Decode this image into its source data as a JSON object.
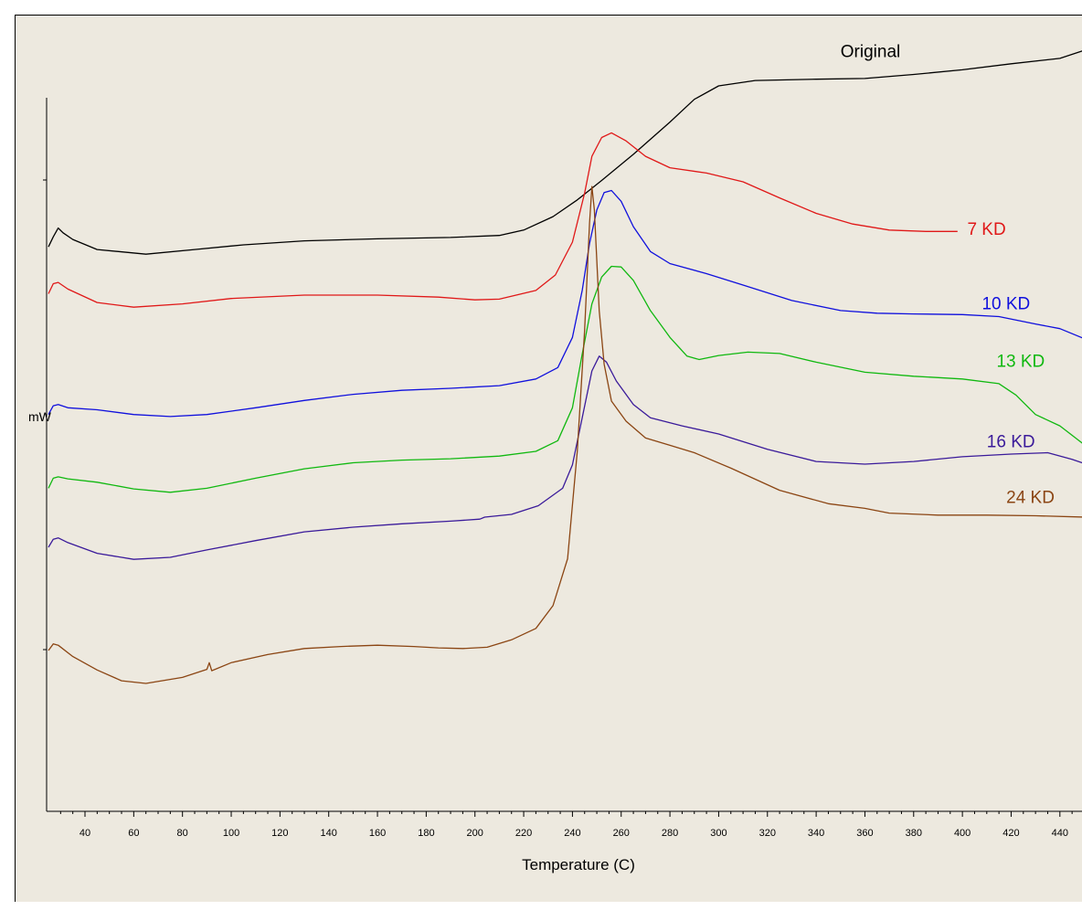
{
  "chart_data": {
    "type": "line",
    "title": "",
    "xlabel": "Temperature (C)",
    "ylabel": "mW",
    "xlim": [
      25,
      450
    ],
    "ylim": [
      0,
      100
    ],
    "x_ticks": [
      40,
      60,
      80,
      100,
      120,
      140,
      160,
      180,
      200,
      220,
      240,
      260,
      280,
      300,
      320,
      340,
      360,
      380,
      400,
      420,
      440
    ],
    "grid": false,
    "legend": "inline labels",
    "series": [
      {
        "name": "Original",
        "color": "#000000",
        "points": [
          [
            25,
            74.5
          ],
          [
            27,
            76.0
          ],
          [
            29,
            77.3
          ],
          [
            31,
            76.6
          ],
          [
            35,
            75.6
          ],
          [
            45,
            74.1
          ],
          [
            65,
            73.4
          ],
          [
            85,
            74.1
          ],
          [
            105,
            74.8
          ],
          [
            130,
            75.4
          ],
          [
            160,
            75.7
          ],
          [
            190,
            75.9
          ],
          [
            210,
            76.2
          ],
          [
            220,
            77.0
          ],
          [
            232,
            79.0
          ],
          [
            242,
            81.5
          ],
          [
            252,
            84.4
          ],
          [
            265,
            88.3
          ],
          [
            280,
            93.1
          ],
          [
            290,
            96.5
          ],
          [
            300,
            98.5
          ],
          [
            315,
            99.3
          ],
          [
            340,
            99.5
          ],
          [
            360,
            99.6
          ],
          [
            380,
            100.2
          ],
          [
            400,
            100.9
          ],
          [
            420,
            101.8
          ],
          [
            440,
            102.6
          ],
          [
            450,
            103.8
          ]
        ]
      },
      {
        "name": "7 KD",
        "color": "#e01818",
        "points": [
          [
            25,
            67.5
          ],
          [
            27,
            69.0
          ],
          [
            29,
            69.2
          ],
          [
            33,
            68.2
          ],
          [
            45,
            66.2
          ],
          [
            60,
            65.5
          ],
          [
            80,
            66.0
          ],
          [
            100,
            66.8
          ],
          [
            130,
            67.3
          ],
          [
            160,
            67.3
          ],
          [
            185,
            67.0
          ],
          [
            200,
            66.6
          ],
          [
            210,
            66.7
          ],
          [
            225,
            68.0
          ],
          [
            233,
            70.3
          ],
          [
            240,
            75.2
          ],
          [
            245,
            82.5
          ],
          [
            248,
            88.0
          ],
          [
            252,
            90.8
          ],
          [
            256,
            91.5
          ],
          [
            262,
            90.3
          ],
          [
            270,
            88.0
          ],
          [
            280,
            86.3
          ],
          [
            295,
            85.5
          ],
          [
            310,
            84.2
          ],
          [
            325,
            81.8
          ],
          [
            340,
            79.5
          ],
          [
            355,
            77.9
          ],
          [
            370,
            77.0
          ],
          [
            385,
            76.8
          ],
          [
            398,
            76.8
          ]
        ]
      },
      {
        "name": "10 KD",
        "color": "#1010dd",
        "points": [
          [
            25,
            49.5
          ],
          [
            27,
            50.8
          ],
          [
            29,
            51.0
          ],
          [
            33,
            50.5
          ],
          [
            45,
            50.2
          ],
          [
            60,
            49.5
          ],
          [
            75,
            49.2
          ],
          [
            90,
            49.5
          ],
          [
            110,
            50.5
          ],
          [
            130,
            51.6
          ],
          [
            150,
            52.5
          ],
          [
            170,
            53.1
          ],
          [
            190,
            53.4
          ],
          [
            210,
            53.8
          ],
          [
            225,
            54.8
          ],
          [
            234,
            56.5
          ],
          [
            240,
            61.0
          ],
          [
            244,
            68.0
          ],
          [
            247,
            75.0
          ],
          [
            250,
            80.0
          ],
          [
            253,
            82.6
          ],
          [
            256,
            82.9
          ],
          [
            260,
            81.3
          ],
          [
            265,
            77.5
          ],
          [
            272,
            73.8
          ],
          [
            280,
            72.0
          ],
          [
            295,
            70.5
          ],
          [
            310,
            68.8
          ],
          [
            330,
            66.5
          ],
          [
            350,
            65.0
          ],
          [
            365,
            64.6
          ],
          [
            380,
            64.5
          ],
          [
            400,
            64.4
          ],
          [
            415,
            64.1
          ],
          [
            430,
            63.0
          ],
          [
            440,
            62.3
          ],
          [
            450,
            60.8
          ]
        ]
      },
      {
        "name": "13 KD",
        "color": "#10b810",
        "points": [
          [
            25,
            38.5
          ],
          [
            27,
            40.0
          ],
          [
            29,
            40.2
          ],
          [
            33,
            39.9
          ],
          [
            45,
            39.4
          ],
          [
            60,
            38.4
          ],
          [
            75,
            37.9
          ],
          [
            90,
            38.5
          ],
          [
            110,
            40.0
          ],
          [
            130,
            41.4
          ],
          [
            150,
            42.3
          ],
          [
            170,
            42.7
          ],
          [
            190,
            42.9
          ],
          [
            210,
            43.3
          ],
          [
            225,
            44.0
          ],
          [
            234,
            45.6
          ],
          [
            240,
            50.5
          ],
          [
            244,
            58.5
          ],
          [
            248,
            66.0
          ],
          [
            252,
            70.0
          ],
          [
            256,
            71.6
          ],
          [
            260,
            71.5
          ],
          [
            265,
            69.5
          ],
          [
            272,
            65.0
          ],
          [
            280,
            61.0
          ],
          [
            287,
            58.2
          ],
          [
            292,
            57.7
          ],
          [
            300,
            58.3
          ],
          [
            312,
            58.8
          ],
          [
            325,
            58.6
          ],
          [
            340,
            57.3
          ],
          [
            360,
            55.8
          ],
          [
            380,
            55.2
          ],
          [
            400,
            54.8
          ],
          [
            415,
            54.1
          ],
          [
            422,
            52.4
          ],
          [
            430,
            49.5
          ],
          [
            440,
            47.8
          ],
          [
            450,
            45.0
          ]
        ]
      },
      {
        "name": "16 KD",
        "color": "#3a1a9a",
        "points": [
          [
            25,
            29.7
          ],
          [
            27,
            30.9
          ],
          [
            29,
            31.1
          ],
          [
            33,
            30.4
          ],
          [
            45,
            28.8
          ],
          [
            60,
            27.9
          ],
          [
            75,
            28.2
          ],
          [
            90,
            29.3
          ],
          [
            110,
            30.7
          ],
          [
            130,
            32.0
          ],
          [
            150,
            32.7
          ],
          [
            170,
            33.2
          ],
          [
            190,
            33.6
          ],
          [
            202,
            33.9
          ],
          [
            204,
            34.2
          ],
          [
            215,
            34.6
          ],
          [
            226,
            35.9
          ],
          [
            236,
            38.5
          ],
          [
            240,
            42.0
          ],
          [
            244,
            49.0
          ],
          [
            248,
            56.0
          ],
          [
            251,
            58.2
          ],
          [
            254,
            57.3
          ],
          [
            258,
            54.5
          ],
          [
            265,
            51.0
          ],
          [
            272,
            49.0
          ],
          [
            285,
            47.8
          ],
          [
            300,
            46.6
          ],
          [
            320,
            44.3
          ],
          [
            340,
            42.5
          ],
          [
            360,
            42.1
          ],
          [
            380,
            42.5
          ],
          [
            400,
            43.2
          ],
          [
            420,
            43.6
          ],
          [
            435,
            43.8
          ],
          [
            445,
            42.8
          ],
          [
            450,
            42.2
          ]
        ]
      },
      {
        "name": "24 KD",
        "color": "#8b4513",
        "points": [
          [
            25,
            14.3
          ],
          [
            27,
            15.3
          ],
          [
            29,
            15.1
          ],
          [
            35,
            13.4
          ],
          [
            45,
            11.4
          ],
          [
            55,
            9.8
          ],
          [
            65,
            9.4
          ],
          [
            80,
            10.3
          ],
          [
            90,
            11.5
          ],
          [
            91,
            12.5
          ],
          [
            92,
            11.3
          ],
          [
            100,
            12.5
          ],
          [
            115,
            13.7
          ],
          [
            130,
            14.6
          ],
          [
            145,
            14.9
          ],
          [
            160,
            15.1
          ],
          [
            175,
            14.9
          ],
          [
            185,
            14.7
          ],
          [
            195,
            14.6
          ],
          [
            205,
            14.8
          ],
          [
            215,
            15.9
          ],
          [
            225,
            17.6
          ],
          [
            232,
            21.0
          ],
          [
            238,
            28.0
          ],
          [
            242,
            44.0
          ],
          [
            245,
            62.0
          ],
          [
            247,
            78.0
          ],
          [
            248,
            83.5
          ],
          [
            249,
            80.0
          ],
          [
            251,
            65.0
          ],
          [
            253,
            57.0
          ],
          [
            256,
            51.5
          ],
          [
            262,
            48.5
          ],
          [
            270,
            46.0
          ],
          [
            280,
            44.9
          ],
          [
            290,
            43.8
          ],
          [
            305,
            41.5
          ],
          [
            325,
            38.2
          ],
          [
            345,
            36.2
          ],
          [
            360,
            35.5
          ],
          [
            370,
            34.8
          ],
          [
            390,
            34.5
          ],
          [
            410,
            34.5
          ],
          [
            430,
            34.4
          ],
          [
            450,
            34.2
          ]
        ]
      }
    ],
    "labels": [
      {
        "text": "Original",
        "x": 350,
        "y": 102.8
      },
      {
        "text": "7 KD",
        "x": 402,
        "y": 76.3
      },
      {
        "text": "10 KD",
        "x": 408,
        "y": 65.2
      },
      {
        "text": "13 KD",
        "x": 414,
        "y": 56.6
      },
      {
        "text": "16 KD",
        "x": 410,
        "y": 44.6
      },
      {
        "text": "24 KD",
        "x": 418,
        "y": 36.3
      }
    ]
  }
}
